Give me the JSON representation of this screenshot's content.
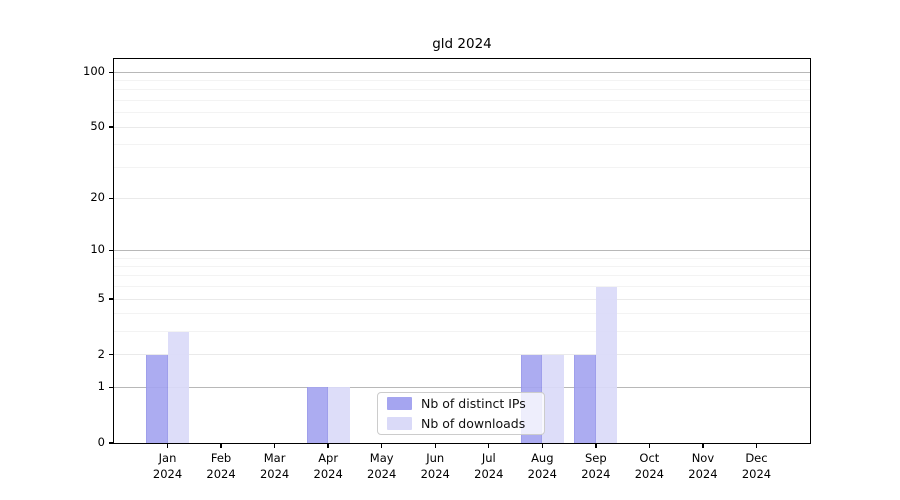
{
  "chart_data": {
    "type": "bar",
    "title": "gld 2024",
    "year": "2024",
    "categories": [
      "Jan 2024",
      "Feb 2024",
      "Mar 2024",
      "Apr 2024",
      "May 2024",
      "Jun 2024",
      "Jul 2024",
      "Aug 2024",
      "Sep 2024",
      "Oct 2024",
      "Nov 2024",
      "Dec 2024"
    ],
    "month_labels": [
      "Jan",
      "Feb",
      "Mar",
      "Apr",
      "May",
      "Jun",
      "Jul",
      "Aug",
      "Sep",
      "Oct",
      "Nov",
      "Dec"
    ],
    "series": [
      {
        "name": "Nb of distinct IPs",
        "color": "#a5a5f0",
        "values": [
          2,
          0,
          0,
          1,
          0,
          0,
          0,
          2,
          2,
          0,
          0,
          0
        ]
      },
      {
        "name": "Nb of downloads",
        "color": "#dadaf8",
        "values": [
          3,
          0,
          0,
          1,
          0,
          0,
          0,
          2,
          6,
          0,
          0,
          0
        ]
      }
    ],
    "yscale": "log1p",
    "yticks": [
      0,
      1,
      2,
      5,
      10,
      20,
      50,
      100
    ],
    "minor_gridlines": [
      3,
      4,
      6,
      7,
      8,
      9,
      30,
      40,
      60,
      70,
      80,
      90
    ],
    "decade_gridlines": [
      1,
      10,
      100
    ],
    "ylim": [
      0,
      120
    ],
    "grid": true,
    "legend_position": "lower-center-right",
    "colors": {
      "decade_grid": "#b8b8b8",
      "major_grid": "#eaeaea",
      "minor_grid": "#f3f3f3",
      "axis": "#000000",
      "background": "#ffffff"
    }
  }
}
